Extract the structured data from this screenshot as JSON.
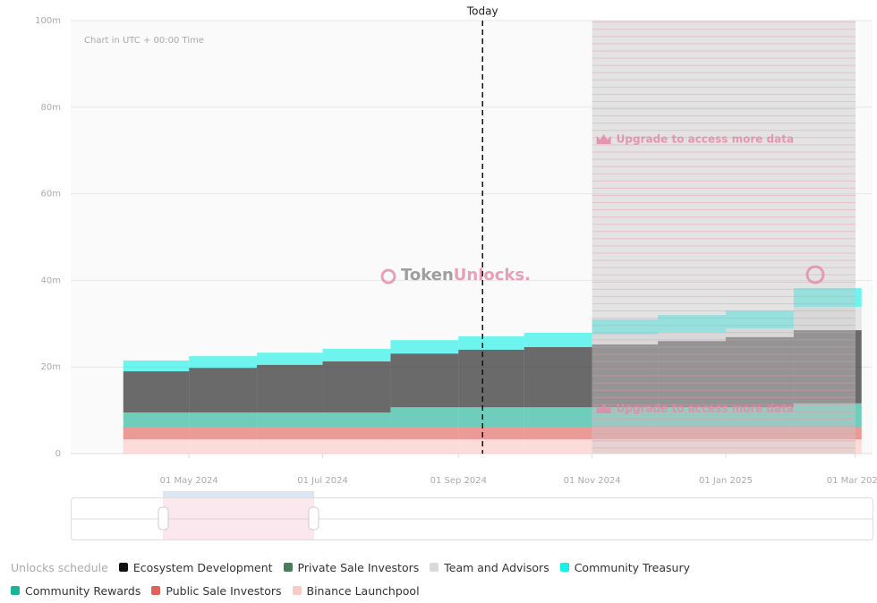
{
  "chart_data": {
    "type": "stacked-step-area",
    "note_text": "Chart in UTC + 00:00 Time",
    "watermark": [
      "Token",
      "Unlocks."
    ],
    "legend_title": "Unlocks schedule",
    "x": [
      "2024-04-01",
      "2024-05-01",
      "2024-06-01",
      "2024-07-01",
      "2024-08-01",
      "2024-09-01",
      "2024-10-01",
      "2024-11-01",
      "2024-12-01",
      "2025-01-01",
      "2025-02-01"
    ],
    "xlim": [
      "2024-03-08",
      "2025-03-09"
    ],
    "xticks": [
      {
        "value": "2024-05-01",
        "label": "01 May 2024"
      },
      {
        "value": "2024-07-01",
        "label": "01 Jul 2024"
      },
      {
        "value": "2024-09-01",
        "label": "01 Sep 2024"
      },
      {
        "value": "2024-11-01",
        "label": "01 Nov 2024"
      },
      {
        "value": "2025-01-01",
        "label": "01 Jan 2025"
      },
      {
        "value": "2025-03-01",
        "label": "01 Mar 2025"
      }
    ],
    "ylim": [
      0,
      100000000
    ],
    "yticks": [
      {
        "value": 0,
        "label": "0"
      },
      {
        "value": 20000000,
        "label": "20m"
      },
      {
        "value": 40000000,
        "label": "40m"
      },
      {
        "value": 60000000,
        "label": "60m"
      },
      {
        "value": 80000000,
        "label": "80m"
      },
      {
        "value": 100000000,
        "label": "100m"
      }
    ],
    "grid": true,
    "annotations": {
      "today": {
        "x": "2024-09-12",
        "label": "Today"
      },
      "locked": {
        "from": "2024-11-01",
        "label": "Upgrade to access more data"
      }
    },
    "series": [
      {
        "name": "Binance Launchpool",
        "color": "#fcc9c4",
        "values": [
          3300000,
          3300000,
          3300000,
          3300000,
          3300000,
          3300000,
          3300000,
          3300000,
          3300000,
          3300000,
          3300000
        ]
      },
      {
        "name": "Public Sale Investors",
        "color": "#e0605a",
        "values": [
          2700000,
          2700000,
          2700000,
          2700000,
          2700000,
          2700000,
          2700000,
          2700000,
          2700000,
          2700000,
          2700000
        ]
      },
      {
        "name": "Community Rewards",
        "color": "#1ab394",
        "values": [
          3500000,
          3500000,
          3500000,
          3500000,
          4700000,
          4700000,
          4700000,
          4700000,
          4700000,
          4700000,
          5600000
        ]
      },
      {
        "name": "Private Sale Investors",
        "color": "#4a7c59",
        "values": [
          0,
          0,
          0,
          0,
          0,
          0,
          0,
          0,
          0,
          0,
          0
        ]
      },
      {
        "name": "Ecosystem Development",
        "color": "#111111",
        "values": [
          9500000,
          10300000,
          11000000,
          11800000,
          12400000,
          13300000,
          13900000,
          14500000,
          15300000,
          16200000,
          16900000
        ]
      },
      {
        "name": "Team and Advisors",
        "color": "#d9d9d9",
        "values": [
          0,
          0,
          0,
          0,
          0,
          0,
          0,
          2300000,
          2100000,
          2000000,
          5400000
        ]
      },
      {
        "name": "Community Treasury",
        "color": "#17f1e6",
        "values": [
          2500000,
          2700000,
          2800000,
          2900000,
          3100000,
          3100000,
          3300000,
          3500000,
          3900000,
          4100000,
          4300000
        ]
      }
    ],
    "legend_order": [
      4,
      3,
      5,
      6,
      2,
      1,
      0
    ]
  }
}
